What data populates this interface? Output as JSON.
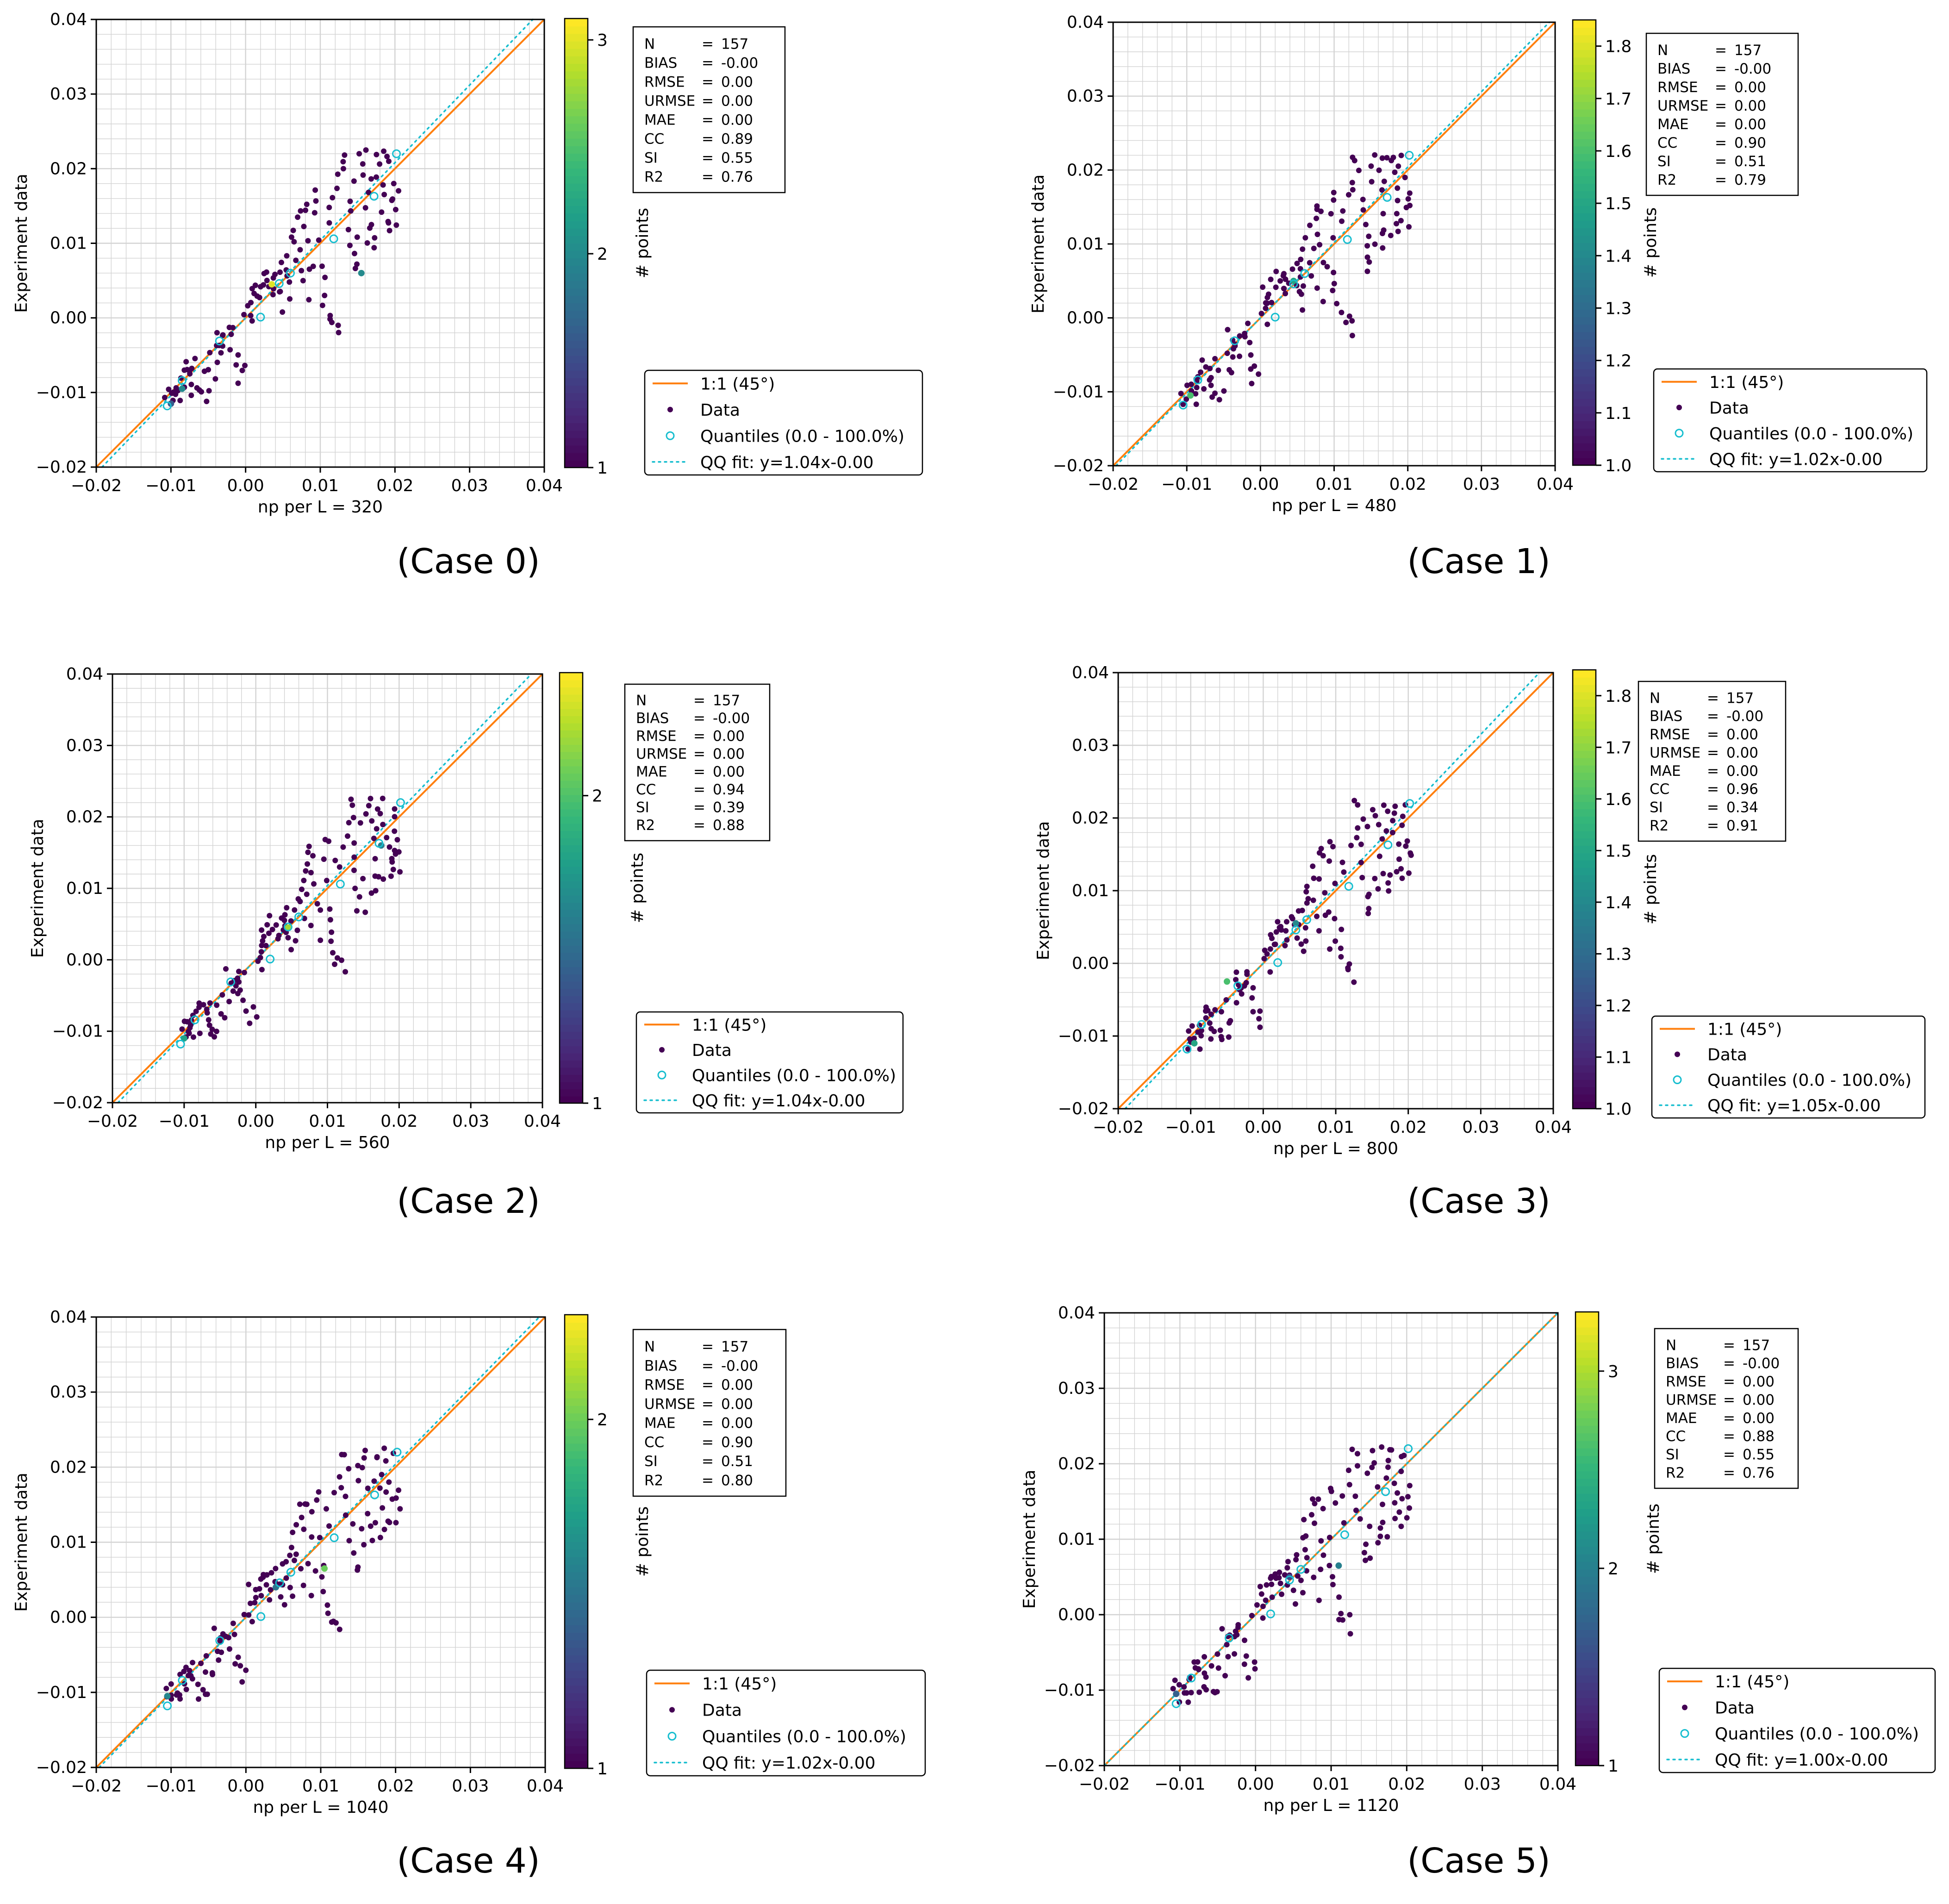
{
  "figure": {
    "colors": {
      "one_to_one": "#ff7f0e",
      "quantile": "#17becf",
      "fit": "#17becf",
      "axis": "#000000",
      "grid": "#d3d3d3",
      "viridis": [
        "#440154",
        "#482878",
        "#3e4989",
        "#31688e",
        "#26828e",
        "#1f9e89",
        "#35b779",
        "#6ece58",
        "#b5de2b",
        "#fde725"
      ]
    },
    "icons": {
      "data_marker": "filled-dot",
      "quantile_marker": "open-circle"
    }
  },
  "chart_data": [
    {
      "type": "scatter",
      "caption": "(Case 0)",
      "xlabel": "np per L = 320",
      "ylabel": "Experiment data",
      "xlim": [
        -0.02,
        0.04
      ],
      "ylim": [
        -0.02,
        0.04
      ],
      "xticks": [
        "−0.02",
        "−0.01",
        "0.00",
        "0.01",
        "0.02",
        "0.03",
        "0.04"
      ],
      "yticks": [
        "−0.02",
        "−0.01",
        "0.00",
        "0.01",
        "0.02",
        "0.03",
        "0.04"
      ],
      "grid": true,
      "colorbar": {
        "label": "# points",
        "min": 1,
        "max": 3.1,
        "ticks": [
          "1",
          "2",
          "3"
        ],
        "tick_values": [
          1,
          2,
          3
        ]
      },
      "stats": [
        {
          "key": "N",
          "value": "157"
        },
        {
          "key": "BIAS",
          "value": "-0.00"
        },
        {
          "key": "RMSE",
          "value": "0.00"
        },
        {
          "key": "URMSE",
          "value": "0.00"
        },
        {
          "key": "MAE",
          "value": "0.00"
        },
        {
          "key": "CC",
          "value": "0.89"
        },
        {
          "key": "SI",
          "value": "0.55"
        },
        {
          "key": "R2",
          "value": "0.76"
        }
      ],
      "legend": [
        "1:1 (45°)",
        "Data",
        "Quantiles (0.0 - 100.0%)",
        "QQ fit: y=1.04x-0.00"
      ],
      "fit": {
        "slope": 1.04,
        "intercept": 0.0
      },
      "hi": [
        [
          0.0035,
          0.0045,
          3
        ],
        [
          -0.0085,
          -0.0095,
          2
        ],
        [
          0.0155,
          0.006,
          2
        ],
        [
          -0.01,
          -0.0115,
          1.6
        ]
      ]
    },
    {
      "type": "scatter",
      "caption": "(Case 1)",
      "xlabel": "np per L = 480",
      "ylabel": "Experiment data",
      "xlim": [
        -0.02,
        0.04
      ],
      "ylim": [
        -0.02,
        0.04
      ],
      "xticks": [
        "−0.02",
        "−0.01",
        "0.00",
        "0.01",
        "0.02",
        "0.03",
        "0.04"
      ],
      "yticks": [
        "−0.02",
        "−0.01",
        "0.00",
        "0.01",
        "0.02",
        "0.03",
        "0.04"
      ],
      "grid": true,
      "colorbar": {
        "label": "# points",
        "min": 1.0,
        "max": 1.85,
        "ticks": [
          "1.0",
          "1.1",
          "1.2",
          "1.3",
          "1.4",
          "1.5",
          "1.6",
          "1.7",
          "1.8"
        ],
        "tick_values": [
          1.0,
          1.1,
          1.2,
          1.3,
          1.4,
          1.5,
          1.6,
          1.7,
          1.8
        ]
      },
      "stats": [
        {
          "key": "N",
          "value": "157"
        },
        {
          "key": "BIAS",
          "value": "-0.00"
        },
        {
          "key": "RMSE",
          "value": "0.00"
        },
        {
          "key": "URMSE",
          "value": "0.00"
        },
        {
          "key": "MAE",
          "value": "0.00"
        },
        {
          "key": "CC",
          "value": "0.90"
        },
        {
          "key": "SI",
          "value": "0.51"
        },
        {
          "key": "R2",
          "value": "0.79"
        }
      ],
      "legend": [
        "1:1 (45°)",
        "Data",
        "Quantiles (0.0 - 100.0%)",
        "QQ fit: y=1.02x-0.00"
      ],
      "fit": {
        "slope": 1.02,
        "intercept": 0.0
      },
      "hi": [
        [
          -0.0095,
          -0.0105,
          1.6
        ],
        [
          0.0045,
          0.005,
          1.5
        ]
      ]
    },
    {
      "type": "scatter",
      "caption": "(Case 2)",
      "xlabel": "np per L = 560",
      "ylabel": "Experiment data",
      "xlim": [
        -0.02,
        0.04
      ],
      "ylim": [
        -0.02,
        0.04
      ],
      "xticks": [
        "−0.02",
        "−0.01",
        "0.00",
        "0.01",
        "0.02",
        "0.03",
        "0.04"
      ],
      "yticks": [
        "−0.02",
        "−0.01",
        "0.00",
        "0.01",
        "0.02",
        "0.03",
        "0.04"
      ],
      "grid": true,
      "colorbar": {
        "label": "# points",
        "min": 1,
        "max": 2.4,
        "ticks": [
          "1",
          "2"
        ],
        "tick_values": [
          1,
          2
        ]
      },
      "stats": [
        {
          "key": "N",
          "value": "157"
        },
        {
          "key": "BIAS",
          "value": "-0.00"
        },
        {
          "key": "RMSE",
          "value": "0.00"
        },
        {
          "key": "URMSE",
          "value": "0.00"
        },
        {
          "key": "MAE",
          "value": "0.00"
        },
        {
          "key": "CC",
          "value": "0.94"
        },
        {
          "key": "SI",
          "value": "0.39"
        },
        {
          "key": "R2",
          "value": "0.88"
        }
      ],
      "legend": [
        "1:1 (45°)",
        "Data",
        "Quantiles (0.0 - 100.0%)",
        "QQ fit: y=1.04x-0.00"
      ],
      "fit": {
        "slope": 1.04,
        "intercept": 0.0
      },
      "hi": [
        [
          0.0045,
          0.0045,
          2.2
        ],
        [
          -0.01,
          -0.011,
          1.8
        ],
        [
          0.0175,
          0.016,
          1.6
        ]
      ]
    },
    {
      "type": "scatter",
      "caption": "(Case 3)",
      "xlabel": "np per L = 800",
      "ylabel": "Experiment data",
      "xlim": [
        -0.02,
        0.04
      ],
      "ylim": [
        -0.02,
        0.04
      ],
      "xticks": [
        "−0.02",
        "−0.01",
        "0.00",
        "0.01",
        "0.02",
        "0.03",
        "0.04"
      ],
      "yticks": [
        "−0.02",
        "−0.01",
        "0.00",
        "0.01",
        "0.02",
        "0.03",
        "0.04"
      ],
      "grid": true,
      "colorbar": {
        "label": "# points",
        "min": 1.0,
        "max": 1.85,
        "ticks": [
          "1.0",
          "1.1",
          "1.2",
          "1.3",
          "1.4",
          "1.5",
          "1.6",
          "1.7",
          "1.8"
        ],
        "tick_values": [
          1.0,
          1.1,
          1.2,
          1.3,
          1.4,
          1.5,
          1.6,
          1.7,
          1.8
        ]
      },
      "stats": [
        {
          "key": "N",
          "value": "157"
        },
        {
          "key": "BIAS",
          "value": "-0.00"
        },
        {
          "key": "RMSE",
          "value": "0.00"
        },
        {
          "key": "URMSE",
          "value": "0.00"
        },
        {
          "key": "MAE",
          "value": "0.00"
        },
        {
          "key": "CC",
          "value": "0.96"
        },
        {
          "key": "SI",
          "value": "0.34"
        },
        {
          "key": "R2",
          "value": "0.91"
        }
      ],
      "legend": [
        "1:1 (45°)",
        "Data",
        "Quantiles (0.0 - 100.0%)",
        "QQ fit: y=1.05x-0.00"
      ],
      "fit": {
        "slope": 1.05,
        "intercept": 0.0
      },
      "hi": [
        [
          -0.0095,
          -0.011,
          1.5
        ],
        [
          -0.005,
          -0.0025,
          1.6
        ],
        [
          0.0045,
          0.0055,
          1.4
        ]
      ]
    },
    {
      "type": "scatter",
      "caption": "(Case 4)",
      "xlabel": "np per L = 1040",
      "ylabel": "Experiment data",
      "xlim": [
        -0.02,
        0.04
      ],
      "ylim": [
        -0.02,
        0.04
      ],
      "xticks": [
        "−0.02",
        "−0.01",
        "0.00",
        "0.01",
        "0.02",
        "0.03",
        "0.04"
      ],
      "yticks": [
        "−0.02",
        "−0.01",
        "0.00",
        "0.01",
        "0.02",
        "0.03",
        "0.04"
      ],
      "grid": true,
      "colorbar": {
        "label": "# points",
        "min": 1,
        "max": 2.3,
        "ticks": [
          "1",
          "2"
        ],
        "tick_values": [
          1,
          2
        ]
      },
      "stats": [
        {
          "key": "N",
          "value": "157"
        },
        {
          "key": "BIAS",
          "value": "-0.00"
        },
        {
          "key": "RMSE",
          "value": "0.00"
        },
        {
          "key": "URMSE",
          "value": "0.00"
        },
        {
          "key": "MAE",
          "value": "0.00"
        },
        {
          "key": "CC",
          "value": "0.90"
        },
        {
          "key": "SI",
          "value": "0.51"
        },
        {
          "key": "R2",
          "value": "0.80"
        }
      ],
      "legend": [
        "1:1 (45°)",
        "Data",
        "Quantiles (0.0 - 100.0%)",
        "QQ fit: y=1.02x-0.00"
      ],
      "fit": {
        "slope": 1.02,
        "intercept": 0.0
      },
      "hi": [
        [
          0.0105,
          0.0065,
          2
        ],
        [
          -0.0105,
          -0.0105,
          1.6
        ],
        [
          0.004,
          0.004,
          1.5
        ]
      ]
    },
    {
      "type": "scatter",
      "caption": "(Case 5)",
      "xlabel": "np per L = 1120",
      "ylabel": "Experiment data",
      "xlim": [
        -0.02,
        0.04
      ],
      "ylim": [
        -0.02,
        0.04
      ],
      "xticks": [
        "−0.02",
        "−0.01",
        "0.00",
        "0.01",
        "0.02",
        "0.03",
        "0.04"
      ],
      "yticks": [
        "−0.02",
        "−0.01",
        "0.00",
        "0.01",
        "0.02",
        "0.03",
        "0.04"
      ],
      "grid": true,
      "colorbar": {
        "label": "# points",
        "min": 1,
        "max": 3.3,
        "ticks": [
          "1",
          "2",
          "3"
        ],
        "tick_values": [
          1,
          2,
          3
        ]
      },
      "stats": [
        {
          "key": "N",
          "value": "157"
        },
        {
          "key": "BIAS",
          "value": "-0.00"
        },
        {
          "key": "RMSE",
          "value": "0.00"
        },
        {
          "key": "URMSE",
          "value": "0.00"
        },
        {
          "key": "MAE",
          "value": "0.00"
        },
        {
          "key": "CC",
          "value": "0.88"
        },
        {
          "key": "SI",
          "value": "0.55"
        },
        {
          "key": "R2",
          "value": "0.76"
        }
      ],
      "legend": [
        "1:1 (45°)",
        "Data",
        "Quantiles (0.0 - 100.0%)",
        "QQ fit: y=1.00x-0.00"
      ],
      "fit": {
        "slope": 1.0,
        "intercept": 0.0
      },
      "hi": [
        [
          0.011,
          0.0065,
          2
        ],
        [
          -0.0105,
          -0.0105,
          1.7
        ],
        [
          0.0045,
          0.005,
          1.5
        ]
      ]
    }
  ],
  "shared_points": [
    [
      -0.0105,
      -0.0102
    ],
    [
      -0.0101,
      -0.0113
    ],
    [
      -0.0098,
      -0.0105
    ],
    [
      -0.0094,
      -0.0096
    ],
    [
      -0.0097,
      -0.0091
    ],
    [
      -0.0092,
      -0.0107
    ],
    [
      -0.0089,
      -0.0099
    ],
    [
      -0.0086,
      -0.0088
    ],
    [
      -0.0084,
      -0.0081
    ],
    [
      -0.0081,
      -0.0075
    ],
    [
      -0.0079,
      -0.0069
    ],
    [
      -0.0075,
      -0.0065
    ],
    [
      -0.0072,
      -0.0071
    ],
    [
      -0.0083,
      -0.0062
    ],
    [
      -0.0069,
      -0.0085
    ],
    [
      -0.0066,
      -0.0092
    ],
    [
      -0.0062,
      -0.0104
    ],
    [
      -0.0058,
      -0.0097
    ],
    [
      -0.0054,
      -0.0107
    ],
    [
      -0.0051,
      -0.0099
    ],
    [
      -0.0046,
      -0.0074
    ],
    [
      -0.0043,
      -0.0079
    ],
    [
      -0.0039,
      -0.0056
    ],
    [
      -0.0035,
      -0.0041
    ],
    [
      -0.0034,
      -0.0026
    ],
    [
      -0.0031,
      -0.0033
    ],
    [
      -0.0027,
      -0.0022
    ],
    [
      -0.0023,
      -0.0027
    ],
    [
      -0.0021,
      -0.0012
    ],
    [
      -0.0018,
      -0.0038
    ],
    [
      -0.0014,
      -0.0052
    ],
    [
      -0.0011,
      -0.0067
    ],
    [
      -0.0008,
      -0.0084
    ],
    [
      -0.0005,
      -0.0061
    ],
    [
      -0.0002,
      -0.0075
    ],
    [
      -0.0001,
      0.0003
    ],
    [
      0.0003,
      0.0008
    ],
    [
      0.0006,
      0.0016
    ],
    [
      0.0009,
      -0.0009
    ],
    [
      0.0012,
      0.0031
    ],
    [
      0.0015,
      0.0037
    ],
    [
      0.0018,
      0.0024
    ],
    [
      0.0021,
      0.0041
    ],
    [
      0.0024,
      0.0046
    ],
    [
      0.0027,
      0.0052
    ],
    [
      0.0029,
      0.0037
    ],
    [
      0.0032,
      0.0061
    ],
    [
      0.0035,
      0.0044
    ],
    [
      0.0038,
      0.0057
    ],
    [
      0.0041,
      0.0049
    ],
    [
      0.0043,
      0.0064
    ],
    [
      0.0046,
      0.0039
    ],
    [
      0.0049,
      0.0031
    ],
    [
      0.0052,
      0.0054
    ],
    [
      0.0055,
      0.0069
    ],
    [
      0.0058,
      0.0084
    ],
    [
      0.0061,
      0.0097
    ],
    [
      0.0063,
      0.0109
    ],
    [
      0.0066,
      0.0122
    ],
    [
      0.0069,
      0.0089
    ],
    [
      0.0072,
      0.0131
    ],
    [
      0.0075,
      0.0147
    ],
    [
      0.0078,
      0.0155
    ],
    [
      0.0081,
      0.0118
    ],
    [
      0.0084,
      0.0102
    ],
    [
      0.0087,
      0.0074
    ],
    [
      0.0089,
      0.0065
    ],
    [
      0.0092,
      0.0136
    ],
    [
      0.0095,
      0.0106
    ],
    [
      0.0098,
      0.0161
    ],
    [
      0.0101,
      0.0066
    ],
    [
      0.0104,
      0.0051
    ],
    [
      0.0107,
      0.0021
    ],
    [
      0.0111,
      0.0005
    ],
    [
      0.0114,
      -0.0011
    ],
    [
      0.0117,
      -0.0002
    ],
    [
      0.0121,
      -0.0005
    ],
    [
      0.0124,
      -0.0021
    ],
    [
      0.0127,
      0.0188
    ],
    [
      0.0129,
      0.0221
    ],
    [
      0.0131,
      0.0213
    ],
    [
      0.0134,
      0.0196
    ],
    [
      0.0137,
      0.0141
    ],
    [
      0.0139,
      0.0123
    ],
    [
      0.0142,
      0.0098
    ],
    [
      0.0145,
      0.0067
    ],
    [
      0.0148,
      0.0087
    ],
    [
      0.0151,
      0.0113
    ],
    [
      0.0153,
      0.0204
    ],
    [
      0.0155,
      0.0216
    ],
    [
      0.0158,
      0.0195
    ],
    [
      0.0161,
      0.0171
    ],
    [
      0.0164,
      0.0143
    ],
    [
      0.0166,
      0.0119
    ],
    [
      0.0169,
      0.0099
    ],
    [
      0.0172,
      0.0186
    ],
    [
      0.0174,
      0.0214
    ],
    [
      0.0177,
      0.0208
    ],
    [
      0.0179,
      0.0193
    ],
    [
      0.0182,
      0.0175
    ],
    [
      0.0184,
      0.0162
    ],
    [
      0.0186,
      0.0146
    ],
    [
      0.0188,
      0.0131
    ],
    [
      0.0191,
      0.0205
    ],
    [
      0.0193,
      0.0216
    ],
    [
      0.0195,
      0.0185
    ],
    [
      0.0197,
      0.0158
    ],
    [
      0.0199,
      0.0153
    ],
    [
      0.0201,
      0.0173
    ],
    [
      0.0203,
      0.0128
    ],
    [
      0.0171,
      0.0121
    ],
    [
      0.0159,
      0.0098
    ],
    [
      0.0149,
      0.0071
    ],
    [
      0.0118,
      0.0162
    ],
    [
      0.0108,
      0.0143
    ],
    [
      0.0096,
      0.0172
    ],
    [
      0.0081,
      0.0149
    ],
    [
      0.0071,
      0.0061
    ],
    [
      0.0062,
      0.0044
    ],
    [
      0.0059,
      0.0029
    ],
    [
      -0.0076,
      -0.0101
    ],
    [
      -0.0064,
      -0.0059
    ],
    [
      -0.0049,
      -0.0048
    ],
    [
      -0.0038,
      -0.0032
    ],
    [
      -0.0029,
      -0.0047
    ],
    [
      -0.0019,
      -0.0018
    ],
    [
      0.0007,
      0.0041
    ],
    [
      0.0017,
      0.0048
    ],
    [
      0.0034,
      0.0028
    ],
    [
      0.0047,
      0.0071
    ],
    [
      0.0053,
      0.0012
    ],
    [
      0.0064,
      0.0079
    ],
    [
      0.0077,
      0.0045
    ],
    [
      0.0088,
      0.0024
    ],
    [
      0.0102,
      0.0035
    ],
    [
      0.0113,
      0.0126
    ],
    [
      0.0125,
      0.0169
    ],
    [
      0.0136,
      0.0159
    ],
    [
      0.0147,
      0.0187
    ],
    [
      0.0163,
      0.0221
    ],
    [
      0.0181,
      0.0221
    ],
    [
      0.0194,
      0.0132
    ],
    [
      0.0202,
      0.0146
    ],
    [
      0.0189,
      0.0112
    ],
    [
      0.0176,
      0.0108
    ],
    [
      -0.0103,
      -0.0091
    ],
    [
      -0.0091,
      -0.0113
    ],
    [
      -0.0071,
      -0.0079
    ],
    [
      -0.0056,
      -0.0068
    ],
    [
      -0.0041,
      -0.0017
    ],
    [
      0.0011,
      0.0016
    ],
    [
      0.0023,
      0.0058
    ]
  ],
  "quantiles": [
    [
      -0.0105,
      -0.0118
    ],
    [
      -0.0085,
      -0.0084
    ],
    [
      -0.0035,
      -0.0031
    ],
    [
      0.002,
      0.0001
    ],
    [
      0.0045,
      0.0046
    ],
    [
      0.006,
      0.006
    ],
    [
      0.0118,
      0.0106
    ],
    [
      0.0172,
      0.0163
    ],
    [
      0.0202,
      0.022
    ]
  ]
}
